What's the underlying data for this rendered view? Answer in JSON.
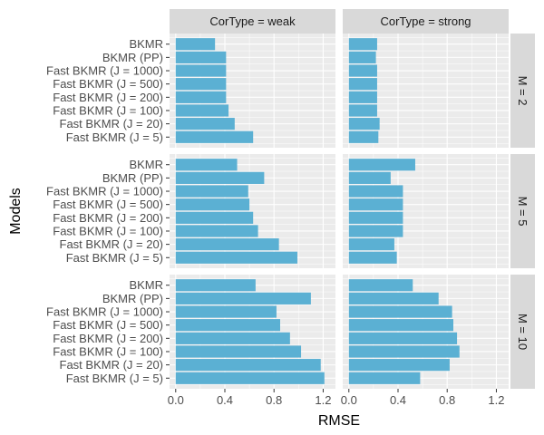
{
  "chart_data": {
    "type": "bar",
    "orientation": "horizontal",
    "xlabel": "RMSE",
    "ylabel": "Models",
    "xlim": [
      -0.05,
      1.3
    ],
    "xticks": [
      0.0,
      0.4,
      0.8,
      1.2
    ],
    "xtick_labels": [
      "0.0",
      "0.4",
      "0.8",
      "1.2"
    ],
    "categories": [
      "BKMR",
      "BKMR (PP)",
      "Fast BKMR (J = 1000)",
      "Fast BKMR (J = 500)",
      "Fast BKMR (J = 200)",
      "Fast BKMR (J = 100)",
      "Fast BKMR (J = 20)",
      "Fast BKMR (J = 5)"
    ],
    "col_labels": [
      "CorType = weak",
      "CorType = strong"
    ],
    "row_labels": [
      "M = 2",
      "M = 5",
      "M = 10"
    ],
    "bar_color": "#5bb0d3",
    "panels": [
      {
        "row": 0,
        "col": 0,
        "values": [
          0.32,
          0.41,
          0.41,
          0.41,
          0.41,
          0.43,
          0.48,
          0.63
        ]
      },
      {
        "row": 0,
        "col": 1,
        "values": [
          0.23,
          0.22,
          0.23,
          0.23,
          0.23,
          0.23,
          0.25,
          0.24
        ]
      },
      {
        "row": 1,
        "col": 0,
        "values": [
          0.5,
          0.72,
          0.59,
          0.6,
          0.63,
          0.67,
          0.84,
          0.99
        ]
      },
      {
        "row": 1,
        "col": 1,
        "values": [
          0.54,
          0.34,
          0.44,
          0.44,
          0.44,
          0.44,
          0.37,
          0.39
        ]
      },
      {
        "row": 2,
        "col": 0,
        "values": [
          0.65,
          1.1,
          0.82,
          0.85,
          0.93,
          1.02,
          1.18,
          1.21
        ]
      },
      {
        "row": 2,
        "col": 1,
        "values": [
          0.52,
          0.73,
          0.84,
          0.85,
          0.88,
          0.9,
          0.82,
          0.58
        ]
      }
    ]
  }
}
